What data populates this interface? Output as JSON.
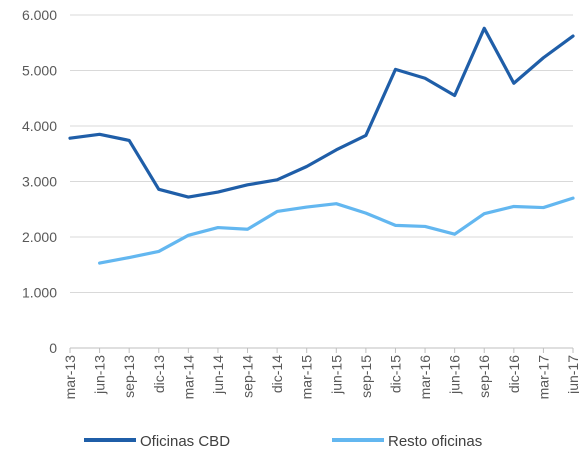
{
  "chart_data": {
    "type": "line",
    "categories": [
      "mar-13",
      "jun-13",
      "sep-13",
      "dic-13",
      "mar-14",
      "jun-14",
      "sep-14",
      "dic-14",
      "mar-15",
      "jun-15",
      "sep-15",
      "dic-15",
      "mar-16",
      "jun-16",
      "sep-16",
      "dic-16",
      "mar-17",
      "jun-17"
    ],
    "series": [
      {
        "name": "Oficinas CBD",
        "color": "#1f5ea8",
        "values": [
          3780,
          3850,
          3740,
          2860,
          2720,
          2810,
          2940,
          3030,
          3270,
          3570,
          3830,
          5020,
          4860,
          4550,
          5760,
          4770,
          5230,
          5620
        ]
      },
      {
        "name": "Resto oficinas",
        "color": "#63b7f0",
        "values": [
          null,
          1530,
          1630,
          1740,
          2030,
          2170,
          2140,
          2460,
          2540,
          2600,
          2430,
          2210,
          2190,
          2050,
          2420,
          2550,
          2530,
          2700
        ]
      }
    ],
    "yticks": [
      "0",
      "1.000",
      "2.000",
      "3.000",
      "4.000",
      "5.000",
      "6.000"
    ],
    "ylim": [
      0,
      6000
    ],
    "grid": true,
    "legend": "bottom",
    "title": "",
    "xlabel": "",
    "ylabel": ""
  }
}
